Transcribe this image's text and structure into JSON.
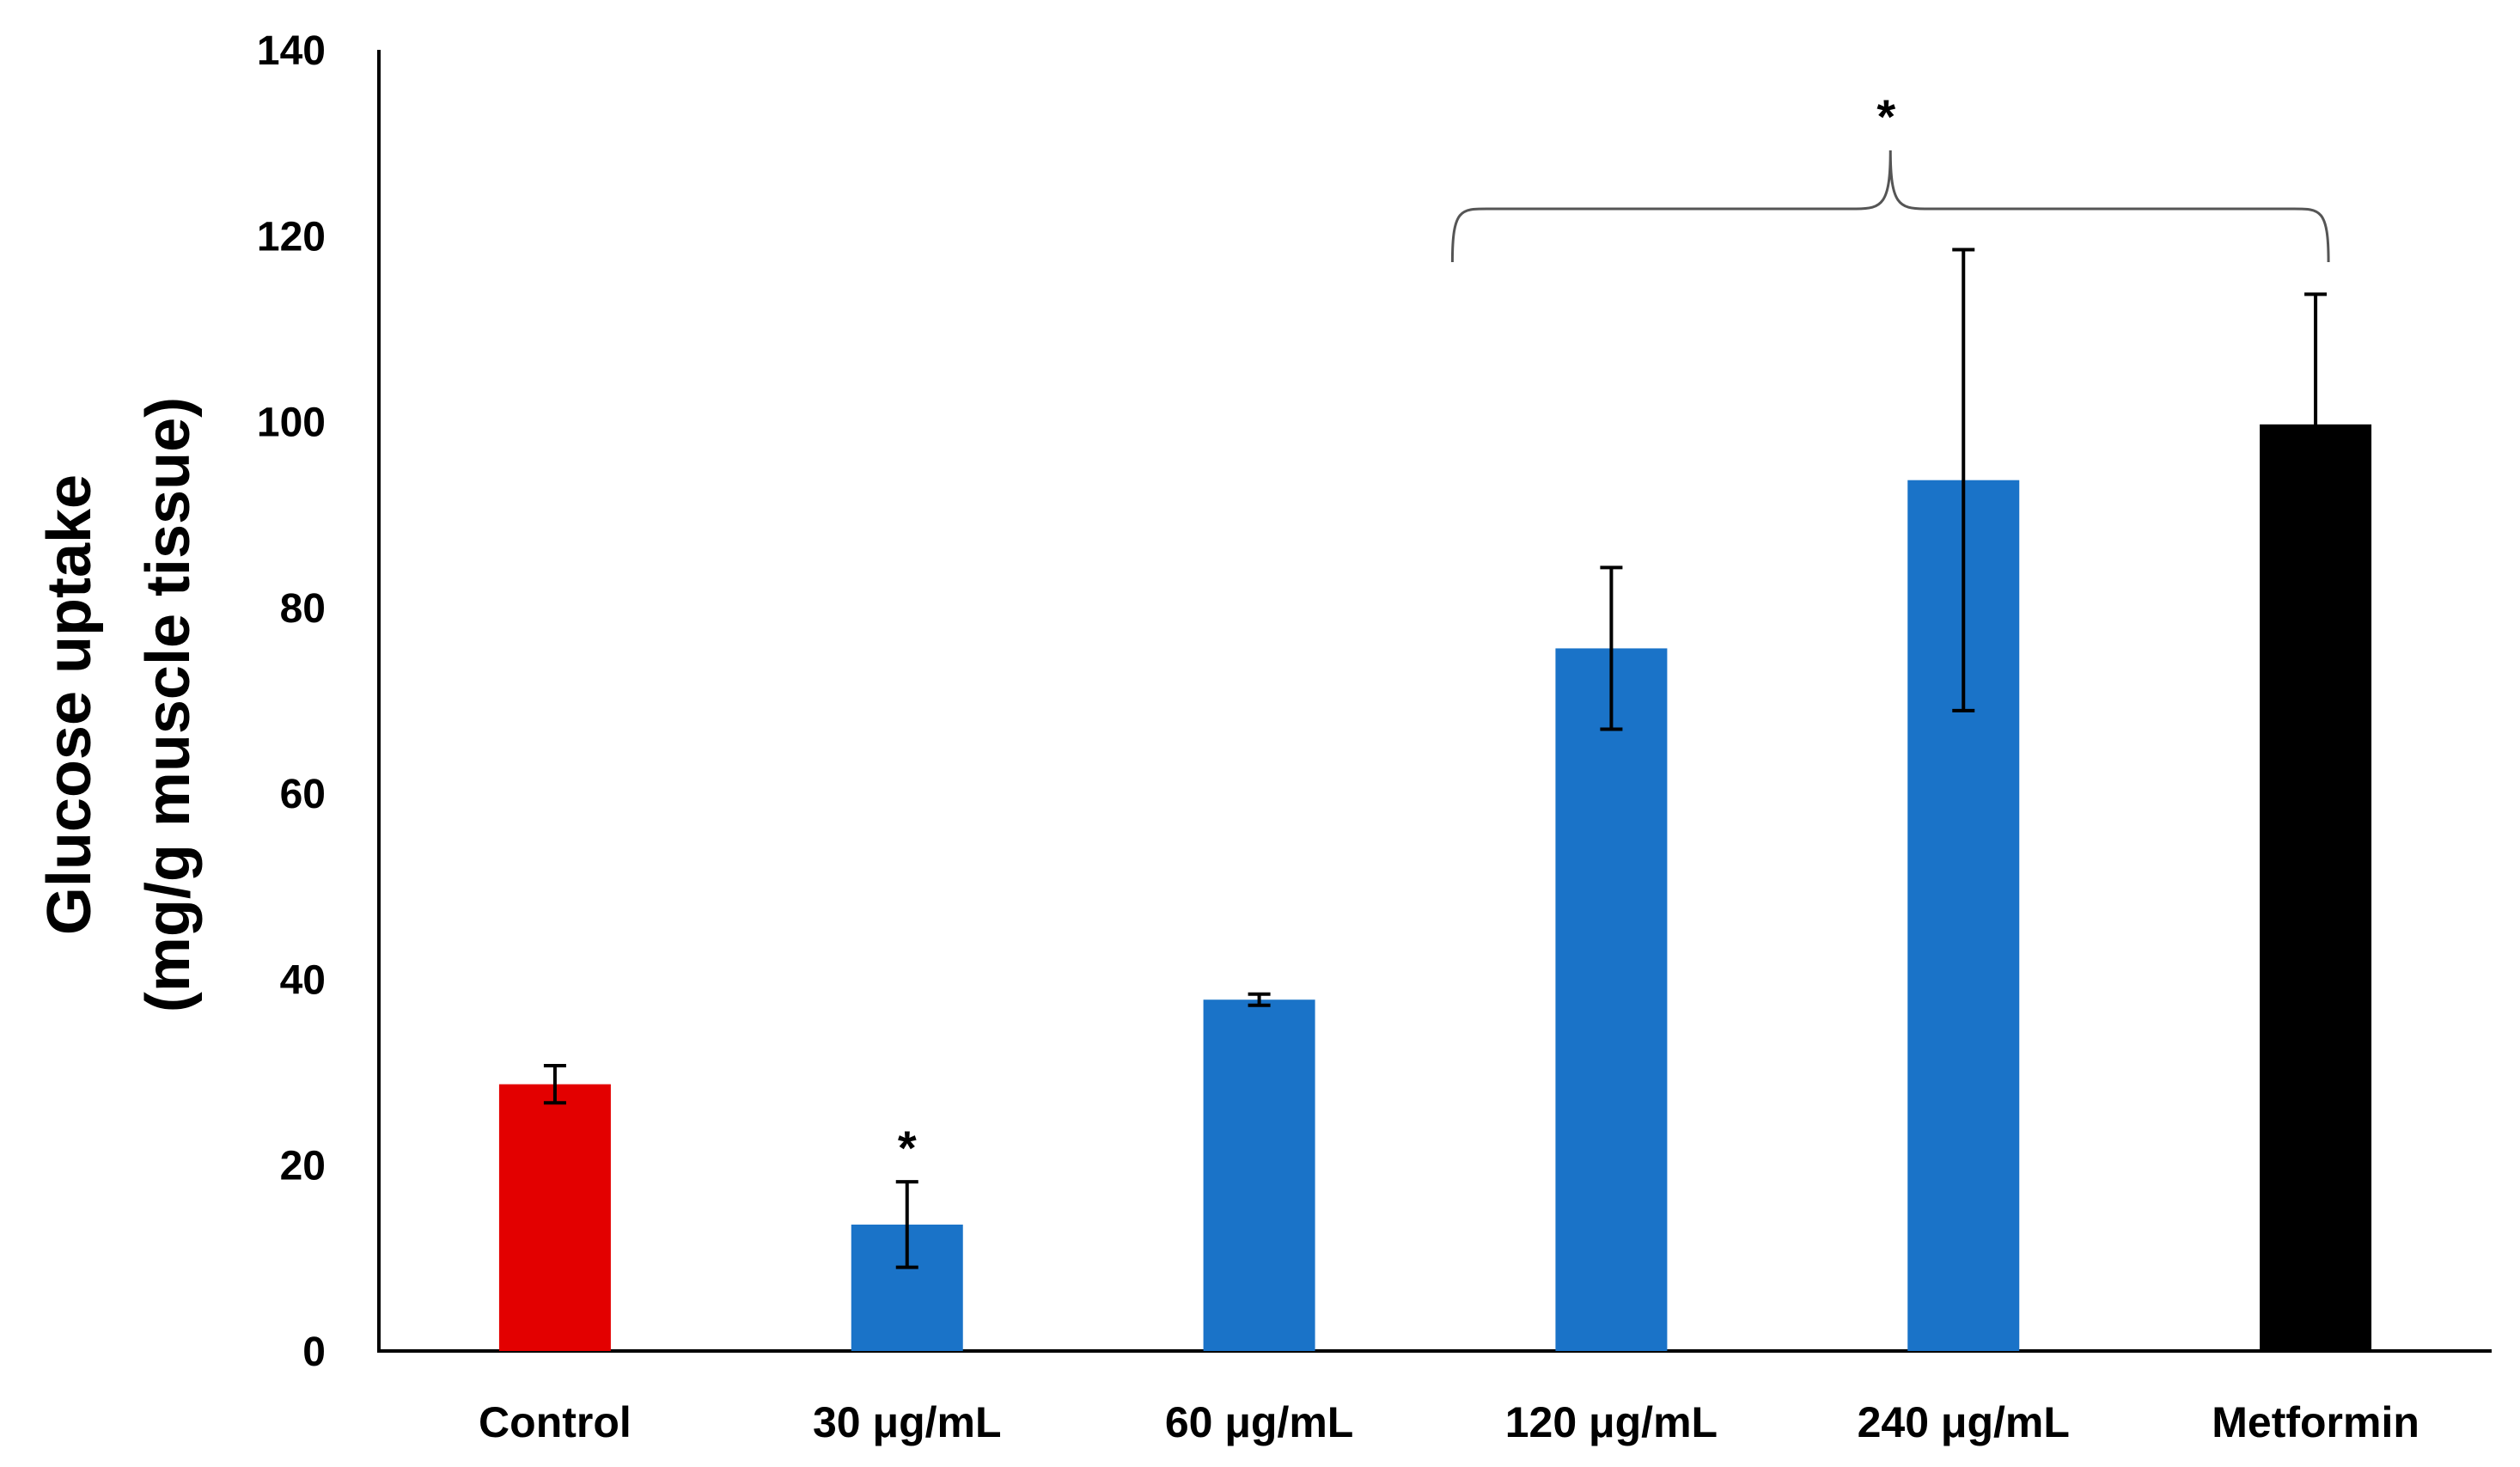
{
  "chart_data": {
    "type": "bar",
    "title": "",
    "xlabel": "",
    "ylabel_lines": [
      "Glucose uptake",
      "(mg/g muscle tissue)"
    ],
    "ylim": [
      0,
      140
    ],
    "yticks": [
      0,
      20,
      40,
      60,
      80,
      100,
      120,
      140
    ],
    "grid": false,
    "categories": [
      "Control",
      "30 μg/mL",
      "60 μg/mL",
      "120 μg/mL",
      "240 μg/mL",
      "Metformin"
    ],
    "values": [
      28.7,
      13.6,
      37.8,
      75.6,
      93.7,
      99.7
    ],
    "errors": [
      2.0,
      4.6,
      0.6,
      8.7,
      24.8,
      14.0
    ],
    "colors": [
      "#e30000",
      "#1a73c8",
      "#1a73c8",
      "#1a73c8",
      "#1a73c8",
      "#000000"
    ],
    "annotations": [
      {
        "text": "*",
        "type": "single",
        "category_index": 1
      },
      {
        "text": "*",
        "type": "bracket",
        "from_index": 3,
        "to_index": 5
      }
    ]
  }
}
